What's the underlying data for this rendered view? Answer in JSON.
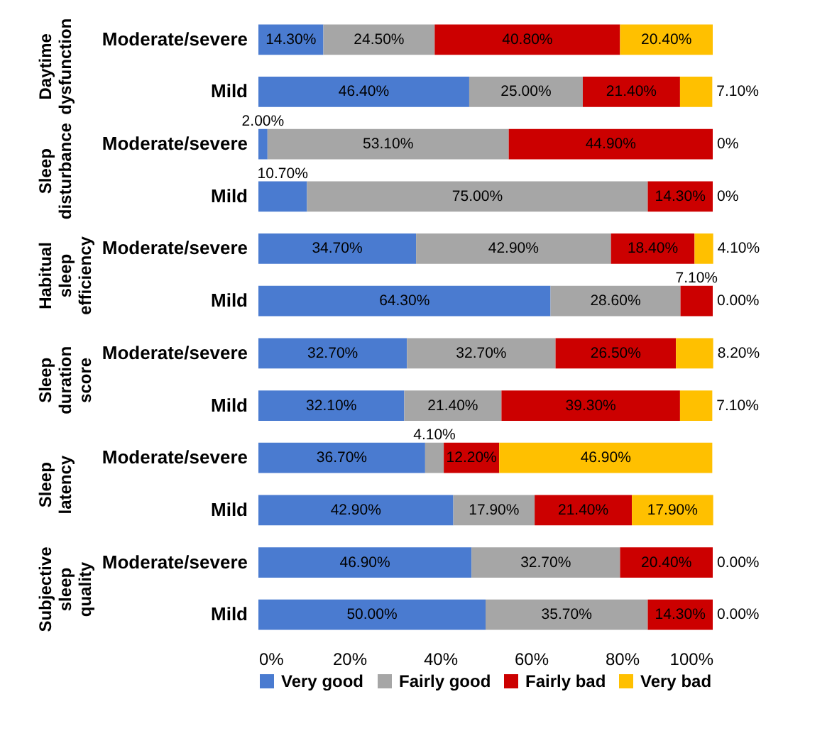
{
  "chart_data": {
    "type": "bar",
    "orientation": "horizontal",
    "stacked": true,
    "categories": [
      "Moderate/severe",
      "Mild",
      "Moderate/severe",
      "Mild",
      "Moderate/severe",
      "Mild",
      "Moderate/severe",
      "Mild",
      "Moderate/severe",
      "Mild",
      "Moderate/severe",
      "Mild"
    ],
    "annotations": [
      "Daytime dysfunction",
      "Sleep disturbance",
      "Habitual sleep efficiency",
      "Sleep duration score",
      "Sleep latency",
      "Subjective sleep quality"
    ],
    "series": [
      {
        "name": "Very good",
        "color": "#4a7bd0",
        "values": [
          14.3,
          46.4,
          2.0,
          10.7,
          34.7,
          64.3,
          32.7,
          32.1,
          36.7,
          42.9,
          46.9,
          50.0
        ],
        "value_labels": [
          "14.30%",
          "46.40%",
          "2.00%",
          "10.70%",
          "34.70%",
          "64.30%",
          "32.70%",
          "32.10%",
          "36.70%",
          "42.90%",
          "46.90%",
          "50.00%"
        ]
      },
      {
        "name": "Fairly good",
        "color": "#a6a6a6",
        "values": [
          24.5,
          25.0,
          53.1,
          75.0,
          42.9,
          28.6,
          32.7,
          21.4,
          4.1,
          17.9,
          32.7,
          35.7
        ],
        "value_labels": [
          "24.50%",
          "25.00%",
          "53.10%",
          "75.00%",
          "42.90%",
          "28.60%",
          "32.70%",
          "21.40%",
          "4.10%",
          "17.90%",
          "32.70%",
          "35.70%"
        ]
      },
      {
        "name": "Fairly bad",
        "color": "#cc0000",
        "values": [
          40.8,
          21.4,
          44.9,
          14.3,
          18.4,
          7.1,
          26.5,
          39.3,
          12.2,
          21.4,
          20.4,
          14.3
        ],
        "value_labels": [
          "40.80%",
          "21.40%",
          "44.90%",
          "14.30%",
          "18.40%",
          "7.10%",
          "26.50%",
          "39.30%",
          "12.20%",
          "21.40%",
          "20.40%",
          "14.30%"
        ]
      },
      {
        "name": "Very bad",
        "color": "#ffc000",
        "values": [
          20.4,
          7.1,
          0,
          0,
          4.1,
          0,
          8.2,
          7.1,
          46.9,
          17.9,
          0,
          0
        ],
        "value_labels": [
          "20.40%",
          "7.10%",
          "0%",
          "0%",
          "4.10%",
          "0.00%",
          "8.20%",
          "7.10%",
          "46.90%",
          "17.90%",
          "0.00%",
          "0.00%"
        ]
      }
    ],
    "xlim": [
      0,
      100
    ],
    "xticks": [
      {
        "value": 0,
        "label": "0%"
      },
      {
        "value": 20,
        "label": "20%"
      },
      {
        "value": 40,
        "label": "40%"
      },
      {
        "value": 60,
        "label": "60%"
      },
      {
        "value": 80,
        "label": "80%"
      },
      {
        "value": 100,
        "label": "100%"
      }
    ],
    "legend": "bottom",
    "grid": false
  }
}
